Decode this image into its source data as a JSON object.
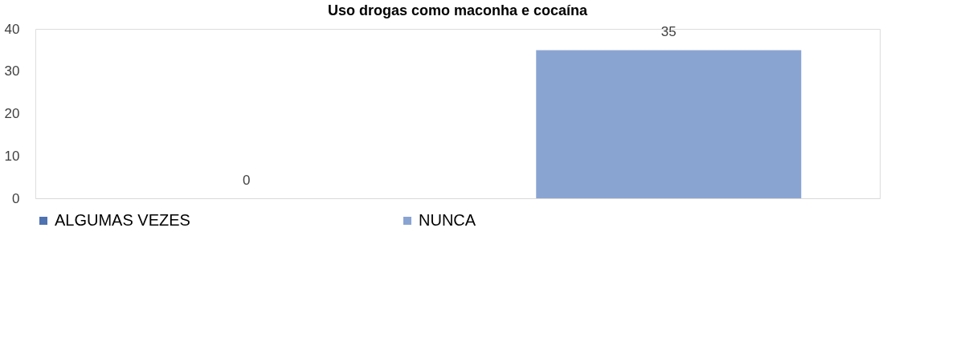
{
  "chart_data": {
    "type": "bar",
    "title": "Uso drogas como maconha e cocaína",
    "categories": [
      null,
      null
    ],
    "series": [
      {
        "name": "ALGUMAS VEZES",
        "color": "#4f72b0",
        "values": [
          0,
          null
        ]
      },
      {
        "name": "NUNCA",
        "color": "#8aa4d2",
        "values": [
          null,
          35
        ]
      }
    ],
    "ylim": [
      0,
      40
    ],
    "yticks": [
      0,
      10,
      20,
      30,
      40
    ],
    "grid": false,
    "legend": "bottom",
    "data_labels": true
  }
}
